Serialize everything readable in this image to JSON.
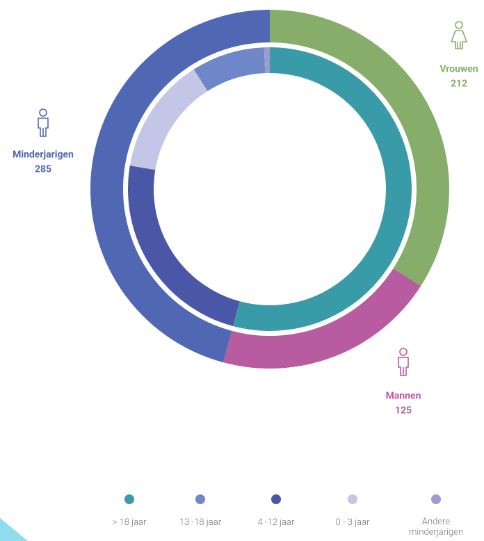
{
  "chart_data": {
    "type": "nested-donut",
    "outer": {
      "categories": [
        "Vrouwen",
        "Mannen",
        "Minderjarigen"
      ],
      "values": [
        212,
        125,
        285
      ],
      "colors": [
        "#86ad6a",
        "#b85ba0",
        "#5068b4"
      ]
    },
    "inner": {
      "categories": [
        "> 18 jaar",
        "4 -12 jaar",
        "0 - 3 jaar",
        "13 -18 jaar",
        "Andere minderjarigen"
      ],
      "values": [
        337,
        146,
        83,
        52,
        4
      ],
      "colors": [
        "#3a9ba8",
        "#4a56a6",
        "#c3c6e6",
        "#6e87c8",
        "#9b9ccf"
      ]
    },
    "legend_order": [
      0,
      3,
      1,
      2,
      4
    ]
  }
}
